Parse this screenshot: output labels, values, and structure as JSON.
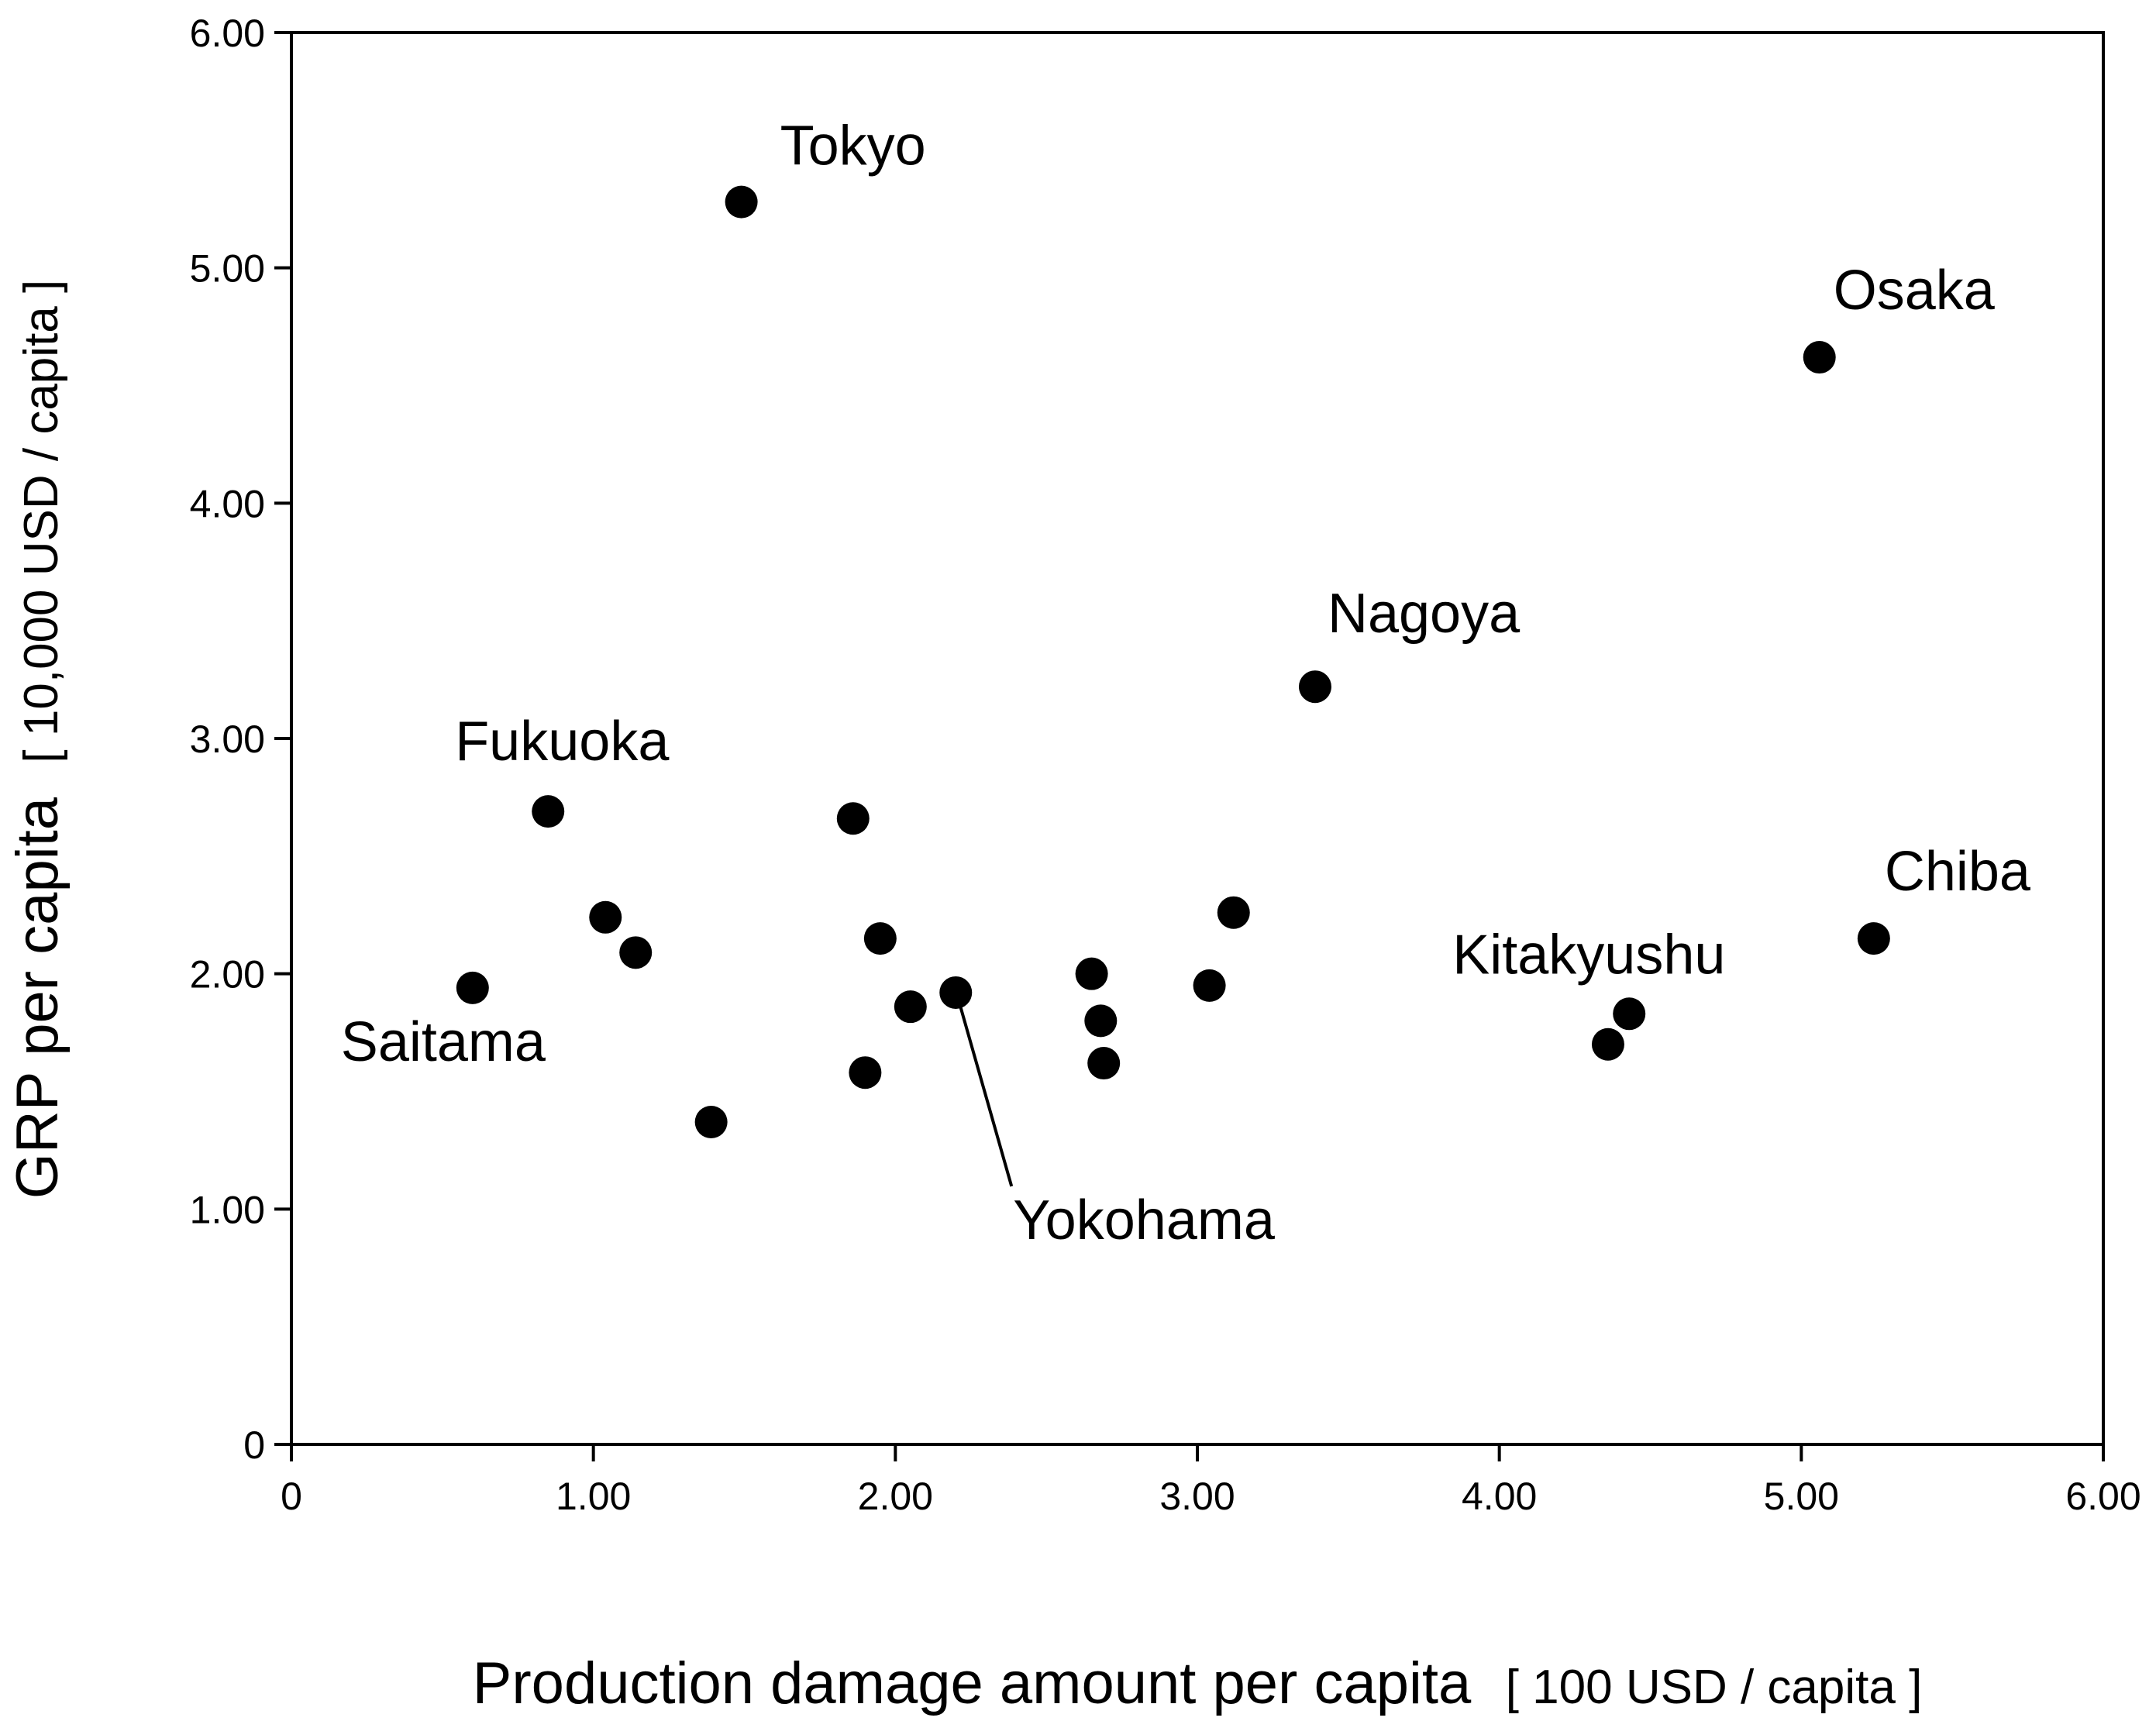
{
  "colors": {
    "background": "#ffffff",
    "ink": "#000000"
  },
  "chart_data": {
    "type": "scatter",
    "title": "",
    "xlabel": "Production damage amount per capita",
    "xlabel_unit": "[ 100 USD / capita ]",
    "ylabel": "GRP per capita",
    "ylabel_unit": "[ 10,000 USD / capita ]",
    "xlim": [
      0,
      6
    ],
    "ylim": [
      0,
      6
    ],
    "x_ticks": [
      0,
      1,
      2,
      3,
      4,
      5,
      6
    ],
    "y_ticks": [
      0,
      1,
      2,
      3,
      4,
      5,
      6
    ],
    "x_tick_labels": [
      "0",
      "1.00",
      "2.00",
      "3.00",
      "4.00",
      "5.00",
      "6.00"
    ],
    "y_tick_labels": [
      "0",
      "1.00",
      "2.00",
      "3.00",
      "4.00",
      "5.00",
      "6.00"
    ],
    "grid": false,
    "points": [
      {
        "x": 1.49,
        "y": 5.28,
        "label": "Tokyo"
      },
      {
        "x": 5.06,
        "y": 4.62,
        "label": "Osaka"
      },
      {
        "x": 3.39,
        "y": 3.22,
        "label": "Nagoya"
      },
      {
        "x": 0.85,
        "y": 2.69,
        "label": "Fukuoka"
      },
      {
        "x": 1.86,
        "y": 2.66,
        "label": ""
      },
      {
        "x": 1.04,
        "y": 2.24,
        "label": ""
      },
      {
        "x": 1.14,
        "y": 2.09,
        "label": ""
      },
      {
        "x": 0.6,
        "y": 1.94,
        "label": "Saitama"
      },
      {
        "x": 1.39,
        "y": 1.37,
        "label": ""
      },
      {
        "x": 1.95,
        "y": 2.15,
        "label": ""
      },
      {
        "x": 1.9,
        "y": 1.58,
        "label": ""
      },
      {
        "x": 2.05,
        "y": 1.86,
        "label": ""
      },
      {
        "x": 2.2,
        "y": 1.92,
        "label": "Yokohama"
      },
      {
        "x": 2.65,
        "y": 2.0,
        "label": ""
      },
      {
        "x": 2.68,
        "y": 1.8,
        "label": ""
      },
      {
        "x": 2.69,
        "y": 1.62,
        "label": ""
      },
      {
        "x": 3.04,
        "y": 1.95,
        "label": ""
      },
      {
        "x": 3.12,
        "y": 2.26,
        "label": ""
      },
      {
        "x": 4.36,
        "y": 1.7,
        "label": ""
      },
      {
        "x": 4.43,
        "y": 1.83,
        "label": "Kitakyushu"
      },
      {
        "x": 5.24,
        "y": 2.15,
        "label": "Chiba"
      }
    ]
  }
}
